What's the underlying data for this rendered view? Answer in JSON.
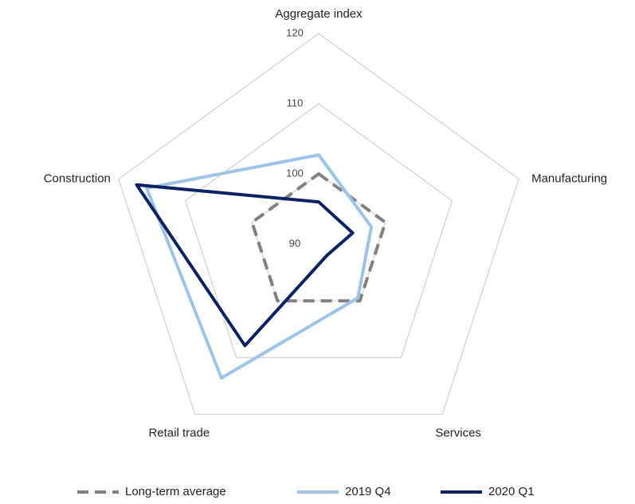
{
  "chart_data": {
    "type": "radar",
    "categories": [
      "Aggregate index",
      "Manufacturing",
      "Services",
      "Retail trade",
      "Construction"
    ],
    "ylim": [
      90,
      120
    ],
    "yticks": [
      90,
      100,
      110,
      120
    ],
    "grid": true,
    "legend": "bottom",
    "series": [
      {
        "name": "Long-term average",
        "color": "#808080",
        "dash": true,
        "values": [
          100,
          100,
          100,
          100,
          100
        ]
      },
      {
        "name": "2019 Q4",
        "color": "#9dc3e6",
        "values": [
          102.7,
          97.9,
          99.5,
          113.6,
          115.8
        ]
      },
      {
        "name": "2020 Q1",
        "color": "#0b2161",
        "values": [
          96,
          95.1,
          92,
          107.9,
          117.3
        ]
      }
    ]
  }
}
